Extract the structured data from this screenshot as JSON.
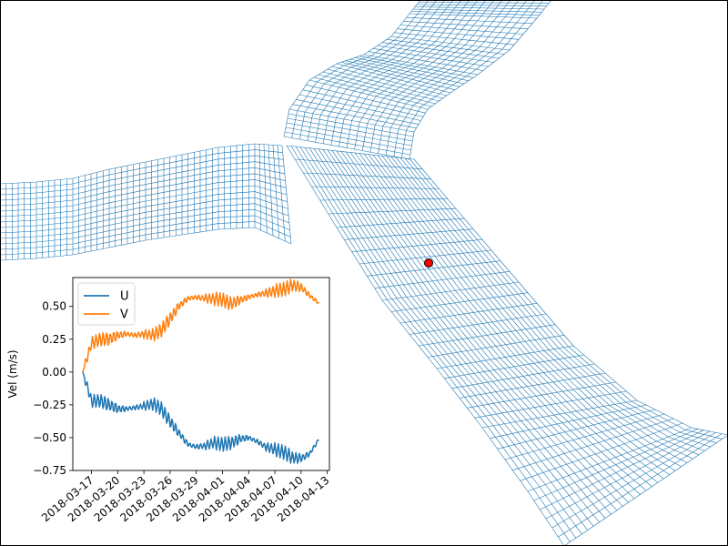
{
  "map": {
    "mesh_color": "#1f77b4",
    "marker_fill": "#ff0000",
    "marker_edge": "#000000"
  },
  "chart_data": {
    "type": "line",
    "ylabel": "Vel (m/s)",
    "xlabel": "",
    "ylim": [
      -0.75,
      0.72
    ],
    "xlim": [
      "2018-03-15",
      "2018-04-14"
    ],
    "yticks": [
      "−0.75",
      "−0.50",
      "−0.25",
      "0.00",
      "0.25",
      "0.50"
    ],
    "ytick_values": [
      -0.75,
      -0.5,
      -0.25,
      0.0,
      0.25,
      0.5
    ],
    "xticks": [
      "2018-03-17",
      "2018-03-20",
      "2018-03-23",
      "2018-03-26",
      "2018-03-29",
      "2018-04-01",
      "2018-04-04",
      "2018-04-07",
      "2018-04-10",
      "2018-04-13"
    ],
    "legend": {
      "placement": "upper-left",
      "entries": [
        "U",
        "V"
      ]
    },
    "grid": false,
    "series": [
      {
        "name": "U",
        "color": "#1f77b4",
        "x": [
          "2018-03-16",
          "2018-03-17",
          "2018-03-18",
          "2018-03-19",
          "2018-03-20",
          "2018-03-21",
          "2018-03-22",
          "2018-03-23",
          "2018-03-24",
          "2018-03-25",
          "2018-03-26",
          "2018-03-27",
          "2018-03-28",
          "2018-03-29",
          "2018-03-30",
          "2018-03-31",
          "2018-04-01",
          "2018-04-02",
          "2018-04-03",
          "2018-04-04",
          "2018-04-05",
          "2018-04-06",
          "2018-04-07",
          "2018-04-08",
          "2018-04-09",
          "2018-04-10",
          "2018-04-11",
          "2018-04-12"
        ],
        "values": [
          0.0,
          -0.22,
          -0.22,
          -0.25,
          -0.28,
          -0.28,
          -0.27,
          -0.26,
          -0.24,
          -0.28,
          -0.38,
          -0.46,
          -0.55,
          -0.57,
          -0.56,
          -0.54,
          -0.55,
          -0.54,
          -0.51,
          -0.5,
          -0.53,
          -0.57,
          -0.59,
          -0.61,
          -0.65,
          -0.66,
          -0.62,
          -0.52
        ]
      },
      {
        "name": "V",
        "color": "#ff7f0e",
        "x": [
          "2018-03-16",
          "2018-03-17",
          "2018-03-18",
          "2018-03-19",
          "2018-03-20",
          "2018-03-21",
          "2018-03-22",
          "2018-03-23",
          "2018-03-24",
          "2018-03-25",
          "2018-03-26",
          "2018-03-27",
          "2018-03-28",
          "2018-03-29",
          "2018-03-30",
          "2018-03-31",
          "2018-04-01",
          "2018-04-02",
          "2018-04-03",
          "2018-04-04",
          "2018-04-05",
          "2018-04-06",
          "2018-04-07",
          "2018-04-08",
          "2018-04-09",
          "2018-04-10",
          "2018-04-11",
          "2018-04-12"
        ],
        "values": [
          0.0,
          0.22,
          0.25,
          0.25,
          0.28,
          0.29,
          0.28,
          0.29,
          0.28,
          0.32,
          0.41,
          0.5,
          0.56,
          0.57,
          0.56,
          0.56,
          0.55,
          0.52,
          0.55,
          0.57,
          0.59,
          0.6,
          0.62,
          0.63,
          0.66,
          0.65,
          0.58,
          0.53
        ]
      }
    ]
  }
}
